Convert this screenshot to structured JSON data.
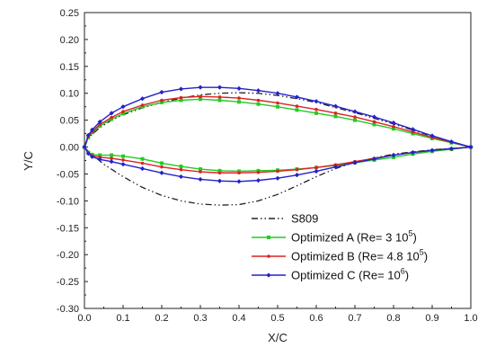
{
  "chart_data": {
    "type": "line",
    "xlabel": "X/C",
    "ylabel": "Y/C",
    "xlim": [
      0.0,
      1.0
    ],
    "ylim": [
      -0.3,
      0.25
    ],
    "x_ticks": [
      "0.0",
      "0.1",
      "0.2",
      "0.3",
      "0.4",
      "0.5",
      "0.6",
      "0.7",
      "0.8",
      "0.9",
      "1.0"
    ],
    "y_ticks": [
      "0.25",
      "0.20",
      "0.15",
      "0.10",
      "0.05",
      "0.00",
      "-0.05",
      "-0.10",
      "-0.15",
      "-0.20",
      "-0.25",
      "-0.30"
    ],
    "grid": false,
    "legend_position": "bottom-right",
    "series": [
      {
        "name": "S809",
        "legend": {
          "base": "S809",
          "sup": "",
          "tail": ""
        },
        "color": "#222222",
        "dash": "dash-dot-dot",
        "marker": "none",
        "upper": [
          [
            0.0,
            0.0
          ],
          [
            0.01,
            0.016
          ],
          [
            0.02,
            0.024
          ],
          [
            0.04,
            0.036
          ],
          [
            0.07,
            0.05
          ],
          [
            0.1,
            0.06
          ],
          [
            0.15,
            0.073
          ],
          [
            0.2,
            0.083
          ],
          [
            0.25,
            0.091
          ],
          [
            0.3,
            0.097
          ],
          [
            0.35,
            0.1
          ],
          [
            0.4,
            0.101
          ],
          [
            0.45,
            0.1
          ],
          [
            0.5,
            0.096
          ],
          [
            0.55,
            0.09
          ],
          [
            0.6,
            0.083
          ],
          [
            0.7,
            0.064
          ],
          [
            0.8,
            0.043
          ],
          [
            0.9,
            0.02
          ],
          [
            0.95,
            0.01
          ],
          [
            1.0,
            0.0
          ]
        ],
        "lower": [
          [
            0.0,
            0.0
          ],
          [
            0.01,
            -0.008
          ],
          [
            0.03,
            -0.02
          ],
          [
            0.05,
            -0.032
          ],
          [
            0.1,
            -0.055
          ],
          [
            0.15,
            -0.075
          ],
          [
            0.2,
            -0.09
          ],
          [
            0.25,
            -0.1
          ],
          [
            0.3,
            -0.106
          ],
          [
            0.35,
            -0.108
          ],
          [
            0.4,
            -0.107
          ],
          [
            0.45,
            -0.1
          ],
          [
            0.5,
            -0.088
          ],
          [
            0.55,
            -0.072
          ],
          [
            0.6,
            -0.055
          ],
          [
            0.65,
            -0.04
          ],
          [
            0.7,
            -0.028
          ],
          [
            0.8,
            -0.013
          ],
          [
            0.9,
            -0.005
          ],
          [
            1.0,
            0.0
          ]
        ]
      },
      {
        "name": "Optimized A (Re= 3 10^5)",
        "legend": {
          "base": "Optimized A (Re= 3 10",
          "sup": "5",
          "tail": ")"
        },
        "color": "#22cc22",
        "dash": "solid",
        "marker": "square",
        "upper": [
          [
            0.0,
            0.0
          ],
          [
            0.01,
            0.018
          ],
          [
            0.02,
            0.027
          ],
          [
            0.04,
            0.039
          ],
          [
            0.07,
            0.052
          ],
          [
            0.1,
            0.062
          ],
          [
            0.15,
            0.075
          ],
          [
            0.2,
            0.083
          ],
          [
            0.25,
            0.087
          ],
          [
            0.3,
            0.089
          ],
          [
            0.35,
            0.087
          ],
          [
            0.4,
            0.084
          ],
          [
            0.45,
            0.08
          ],
          [
            0.5,
            0.075
          ],
          [
            0.55,
            0.069
          ],
          [
            0.6,
            0.063
          ],
          [
            0.65,
            0.057
          ],
          [
            0.7,
            0.05
          ],
          [
            0.75,
            0.042
          ],
          [
            0.8,
            0.034
          ],
          [
            0.85,
            0.025
          ],
          [
            0.9,
            0.016
          ],
          [
            0.95,
            0.008
          ],
          [
            1.0,
            0.0
          ]
        ],
        "lower": [
          [
            0.0,
            0.0
          ],
          [
            0.01,
            -0.01
          ],
          [
            0.02,
            -0.014
          ],
          [
            0.04,
            -0.015
          ],
          [
            0.07,
            -0.015
          ],
          [
            0.1,
            -0.017
          ],
          [
            0.15,
            -0.022
          ],
          [
            0.2,
            -0.03
          ],
          [
            0.25,
            -0.036
          ],
          [
            0.3,
            -0.041
          ],
          [
            0.35,
            -0.044
          ],
          [
            0.4,
            -0.045
          ],
          [
            0.45,
            -0.044
          ],
          [
            0.5,
            -0.043
          ],
          [
            0.55,
            -0.041
          ],
          [
            0.6,
            -0.038
          ],
          [
            0.65,
            -0.034
          ],
          [
            0.7,
            -0.029
          ],
          [
            0.75,
            -0.024
          ],
          [
            0.8,
            -0.019
          ],
          [
            0.85,
            -0.013
          ],
          [
            0.9,
            -0.008
          ],
          [
            0.95,
            -0.004
          ],
          [
            1.0,
            0.0
          ]
        ]
      },
      {
        "name": "Optimized B (Re= 4.8 10^5)",
        "legend": {
          "base": "Optimized B (Re= 4.8 10",
          "sup": "5",
          "tail": ")"
        },
        "color": "#dd2222",
        "dash": "solid",
        "marker": "dot",
        "upper": [
          [
            0.0,
            0.0
          ],
          [
            0.01,
            0.02
          ],
          [
            0.02,
            0.029
          ],
          [
            0.04,
            0.042
          ],
          [
            0.07,
            0.055
          ],
          [
            0.1,
            0.066
          ],
          [
            0.15,
            0.078
          ],
          [
            0.2,
            0.087
          ],
          [
            0.25,
            0.092
          ],
          [
            0.3,
            0.094
          ],
          [
            0.35,
            0.093
          ],
          [
            0.4,
            0.091
          ],
          [
            0.45,
            0.087
          ],
          [
            0.5,
            0.082
          ],
          [
            0.55,
            0.076
          ],
          [
            0.6,
            0.07
          ],
          [
            0.65,
            0.063
          ],
          [
            0.7,
            0.056
          ],
          [
            0.75,
            0.047
          ],
          [
            0.8,
            0.038
          ],
          [
            0.85,
            0.028
          ],
          [
            0.9,
            0.018
          ],
          [
            0.95,
            0.009
          ],
          [
            1.0,
            0.0
          ]
        ],
        "lower": [
          [
            0.0,
            0.0
          ],
          [
            0.01,
            -0.011
          ],
          [
            0.02,
            -0.016
          ],
          [
            0.04,
            -0.019
          ],
          [
            0.07,
            -0.021
          ],
          [
            0.1,
            -0.024
          ],
          [
            0.15,
            -0.03
          ],
          [
            0.2,
            -0.037
          ],
          [
            0.25,
            -0.042
          ],
          [
            0.3,
            -0.046
          ],
          [
            0.35,
            -0.048
          ],
          [
            0.4,
            -0.048
          ],
          [
            0.45,
            -0.047
          ],
          [
            0.5,
            -0.045
          ],
          [
            0.55,
            -0.042
          ],
          [
            0.6,
            -0.038
          ],
          [
            0.65,
            -0.033
          ],
          [
            0.7,
            -0.027
          ],
          [
            0.75,
            -0.021
          ],
          [
            0.8,
            -0.015
          ],
          [
            0.85,
            -0.01
          ],
          [
            0.9,
            -0.006
          ],
          [
            0.95,
            -0.003
          ],
          [
            1.0,
            0.0
          ]
        ]
      },
      {
        "name": "Optimized C (Re= 10^6)",
        "legend": {
          "base": "Optimized C (Re= 10",
          "sup": "6",
          "tail": ")"
        },
        "color": "#2222cc",
        "dash": "solid",
        "marker": "diamond",
        "upper": [
          [
            0.0,
            0.0
          ],
          [
            0.01,
            0.022
          ],
          [
            0.02,
            0.032
          ],
          [
            0.04,
            0.047
          ],
          [
            0.07,
            0.063
          ],
          [
            0.1,
            0.075
          ],
          [
            0.15,
            0.09
          ],
          [
            0.2,
            0.102
          ],
          [
            0.25,
            0.108
          ],
          [
            0.3,
            0.111
          ],
          [
            0.35,
            0.111
          ],
          [
            0.4,
            0.109
          ],
          [
            0.45,
            0.105
          ],
          [
            0.5,
            0.1
          ],
          [
            0.55,
            0.093
          ],
          [
            0.6,
            0.085
          ],
          [
            0.65,
            0.076
          ],
          [
            0.7,
            0.066
          ],
          [
            0.75,
            0.056
          ],
          [
            0.8,
            0.045
          ],
          [
            0.85,
            0.033
          ],
          [
            0.9,
            0.021
          ],
          [
            0.95,
            0.01
          ],
          [
            1.0,
            0.0
          ]
        ],
        "lower": [
          [
            0.0,
            0.0
          ],
          [
            0.01,
            -0.012
          ],
          [
            0.02,
            -0.018
          ],
          [
            0.04,
            -0.023
          ],
          [
            0.07,
            -0.027
          ],
          [
            0.1,
            -0.032
          ],
          [
            0.15,
            -0.04
          ],
          [
            0.2,
            -0.048
          ],
          [
            0.25,
            -0.055
          ],
          [
            0.3,
            -0.06
          ],
          [
            0.35,
            -0.063
          ],
          [
            0.4,
            -0.064
          ],
          [
            0.45,
            -0.062
          ],
          [
            0.5,
            -0.058
          ],
          [
            0.55,
            -0.052
          ],
          [
            0.6,
            -0.045
          ],
          [
            0.65,
            -0.037
          ],
          [
            0.7,
            -0.029
          ],
          [
            0.75,
            -0.022
          ],
          [
            0.8,
            -0.015
          ],
          [
            0.85,
            -0.01
          ],
          [
            0.9,
            -0.006
          ],
          [
            0.95,
            -0.003
          ],
          [
            1.0,
            0.0
          ]
        ]
      }
    ]
  }
}
